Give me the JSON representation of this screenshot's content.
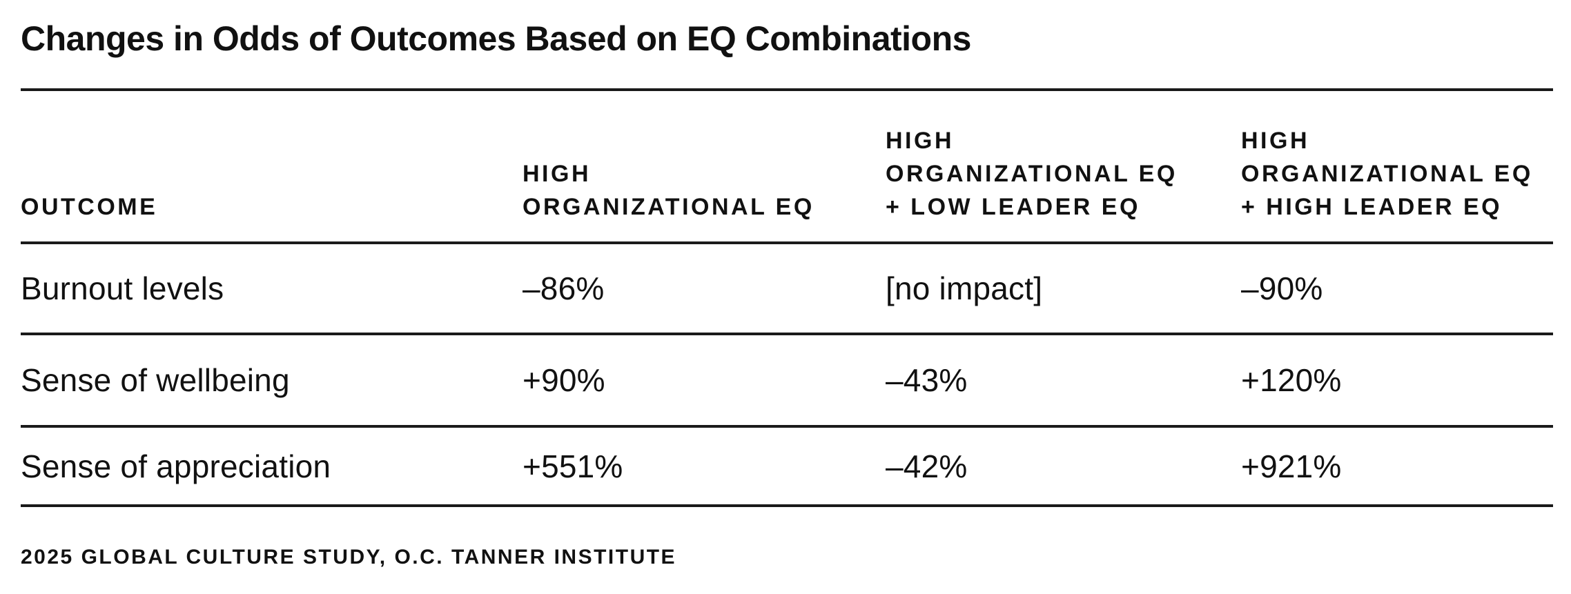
{
  "title": "Changes in Odds of Outcomes Based on EQ Combinations",
  "table": {
    "columns": [
      {
        "label": "OUTCOME"
      },
      {
        "label": "HIGH\nORGANIZATIONAL EQ"
      },
      {
        "label": "HIGH\nORGANIZATIONAL EQ\n+ LOW LEADER EQ"
      },
      {
        "label": "HIGH\nORGANIZATIONAL EQ\n+ HIGH LEADER EQ"
      }
    ],
    "rows": [
      {
        "cells": [
          "Burnout levels",
          "–86%",
          "[no impact]",
          "–90%"
        ]
      },
      {
        "cells": [
          "Sense of wellbeing",
          "+90%",
          "–43%",
          "+120%"
        ]
      },
      {
        "cells": [
          "Sense of appreciation",
          "+551%",
          "–42%",
          "+921%"
        ]
      }
    ]
  },
  "footer": {
    "source": "2025 GLOBAL CULTURE STUDY, O.C. TANNER INSTITUTE"
  },
  "colors": {
    "text": "#111111",
    "rule": "#1a1a1a",
    "background": "#ffffff"
  },
  "chart_data": {
    "type": "table",
    "title": "Changes in Odds of Outcomes Based on EQ Combinations",
    "columns": [
      "OUTCOME",
      "HIGH ORGANIZATIONAL EQ",
      "HIGH ORGANIZATIONAL EQ + LOW LEADER EQ",
      "HIGH ORGANIZATIONAL EQ + HIGH LEADER EQ"
    ],
    "rows": [
      [
        "Burnout levels",
        "–86%",
        "[no impact]",
        "–90%"
      ],
      [
        "Sense of wellbeing",
        "+90%",
        "–43%",
        "+120%"
      ],
      [
        "Sense of appreciation",
        "+551%",
        "–42%",
        "+921%"
      ]
    ],
    "numeric_percent_changes": {
      "Burnout levels": {
        "high_organizational_eq": -86,
        "high_org_eq_low_leader_eq": null,
        "high_org_eq_high_leader_eq": -90
      },
      "Sense of wellbeing": {
        "high_organizational_eq": 90,
        "high_org_eq_low_leader_eq": -43,
        "high_org_eq_high_leader_eq": 120
      },
      "Sense of appreciation": {
        "high_organizational_eq": 551,
        "high_org_eq_low_leader_eq": -42,
        "high_org_eq_high_leader_eq": 921
      }
    },
    "source": "2025 GLOBAL CULTURE STUDY, O.C. TANNER INSTITUTE"
  }
}
